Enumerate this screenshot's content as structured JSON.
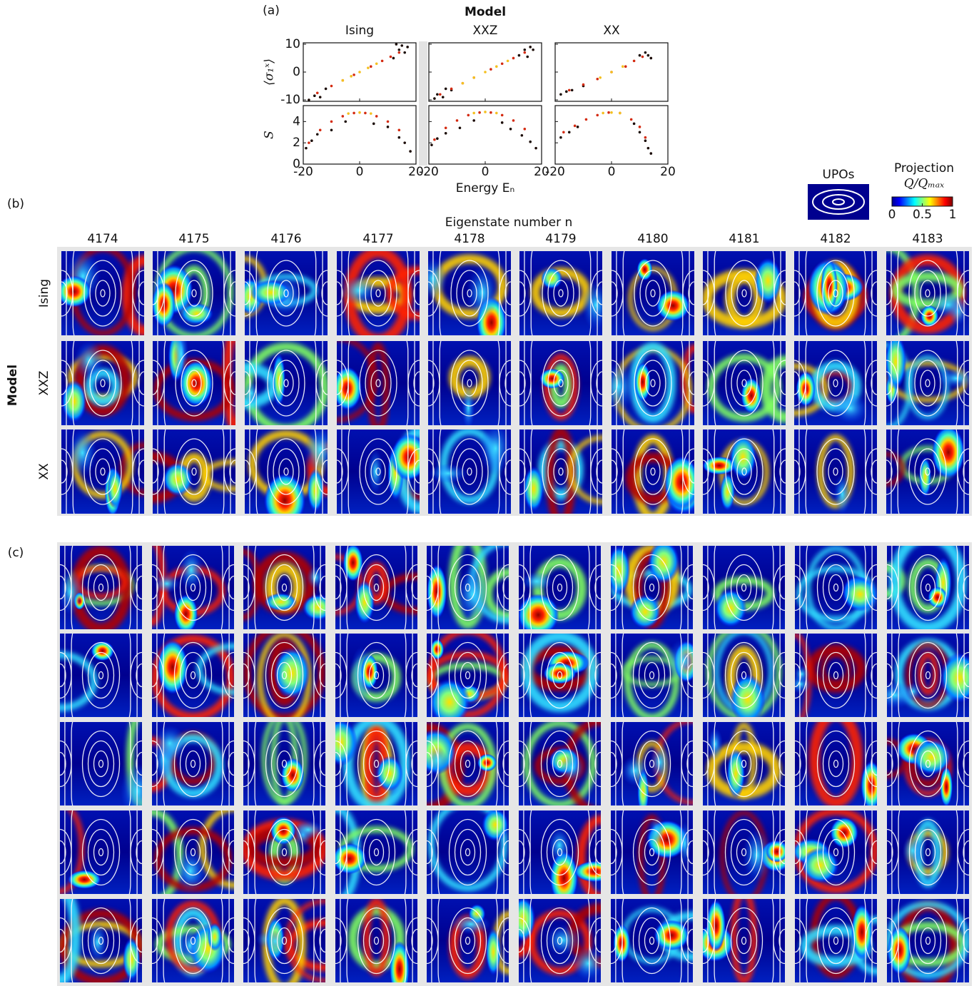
{
  "panel_a": {
    "label": "(a)",
    "title": "Model",
    "columns": [
      "Ising",
      "XXZ",
      "XX"
    ],
    "ylabels": [
      "⟨σ₁ˣ⟩",
      "S"
    ],
    "xlabel": "Energy Eₙ"
  },
  "chart_data": [
    {
      "type": "scatter",
      "xlim": [
        -20,
        20
      ],
      "ylim": [
        -10.5,
        10.5
      ],
      "xticks": [
        -20,
        0,
        20
      ],
      "yticks": [
        -10,
        0,
        10
      ],
      "series": [
        {
          "color": "#1a0a05",
          "x": [
            -18,
            -16,
            -14,
            14,
            15,
            16,
            17,
            -12,
            12,
            13
          ],
          "values": [
            -10,
            -8.5,
            -9,
            8,
            9.5,
            7,
            9,
            -6,
            5,
            10
          ]
        },
        {
          "color": "#d42a10",
          "x": [
            -15,
            -10,
            -6,
            -2,
            4,
            8,
            11,
            14
          ],
          "values": [
            -7.5,
            -5,
            -3,
            -1,
            2,
            4,
            5.5,
            7
          ]
        },
        {
          "color": "#f4c020",
          "x": [
            -6,
            -3,
            0,
            3,
            6
          ],
          "values": [
            -3,
            -1.5,
            0,
            1.5,
            3
          ]
        }
      ]
    },
    {
      "type": "scatter",
      "xlim": [
        -20,
        20
      ],
      "ylim": [
        -10.5,
        10.5
      ],
      "xticks": [
        -20,
        0,
        20
      ],
      "yticks": [
        -10,
        0,
        10
      ],
      "series": [
        {
          "color": "#1a0a05",
          "x": [
            -18,
            -17,
            -15,
            -12,
            12,
            14,
            16,
            17,
            15,
            -14
          ],
          "values": [
            -9.5,
            -8,
            -9,
            -6.5,
            6,
            8,
            9,
            8,
            5.5,
            -6
          ]
        },
        {
          "color": "#d42a10",
          "x": [
            -16,
            -12,
            -8,
            -4,
            2,
            6,
            10,
            14
          ],
          "values": [
            -8,
            -6,
            -4,
            -2,
            1,
            3,
            5,
            7
          ]
        },
        {
          "color": "#f4c020",
          "x": [
            -8,
            -4,
            0,
            4,
            8
          ],
          "values": [
            -4,
            -2,
            0,
            2,
            4
          ]
        }
      ]
    },
    {
      "type": "scatter",
      "xlim": [
        -20,
        20
      ],
      "ylim": [
        -10.5,
        10.5
      ],
      "xticks": [
        -20,
        0,
        20
      ],
      "yticks": [
        -10,
        0,
        10
      ],
      "series": [
        {
          "color": "#1a0a05",
          "x": [
            -18,
            -16,
            -14,
            10,
            12,
            13,
            14,
            -10
          ],
          "values": [
            -8,
            -7,
            -6.5,
            6,
            7,
            6,
            5,
            -5
          ]
        },
        {
          "color": "#d42a10",
          "x": [
            -15,
            -10,
            -5,
            0,
            5,
            8,
            11
          ],
          "values": [
            -6.5,
            -4.5,
            -2.5,
            0,
            2,
            4,
            5.5
          ]
        },
        {
          "color": "#f4c020",
          "x": [
            -4,
            0,
            4
          ],
          "values": [
            -2,
            0,
            2
          ]
        }
      ]
    },
    {
      "type": "scatter",
      "xlim": [
        -20,
        20
      ],
      "ylim": [
        0,
        5.5
      ],
      "xticks": [
        -20,
        0,
        20
      ],
      "yticks": [
        0,
        2,
        4
      ],
      "series": [
        {
          "color": "#1a0a05",
          "x": [
            -19,
            -17,
            -15,
            -10,
            10,
            14,
            16,
            18,
            -5,
            5
          ],
          "values": [
            1.5,
            2.2,
            2.8,
            3.2,
            3.5,
            2.5,
            2,
            1.2,
            4,
            3.8
          ]
        },
        {
          "color": "#d42a10",
          "x": [
            -18,
            -14,
            -10,
            -6,
            -2,
            2,
            6,
            10,
            14
          ],
          "values": [
            2,
            3.2,
            4,
            4.5,
            4.8,
            4.8,
            4.5,
            4,
            3.2
          ]
        },
        {
          "color": "#f4c020",
          "x": [
            -4,
            0,
            4
          ],
          "values": [
            4.75,
            4.85,
            4.75
          ]
        }
      ]
    },
    {
      "type": "scatter",
      "xlim": [
        -20,
        20
      ],
      "ylim": [
        0,
        5.5
      ],
      "xticks": [
        -20,
        0,
        20
      ],
      "yticks": [
        0,
        2,
        4
      ],
      "series": [
        {
          "color": "#1a0a05",
          "x": [
            -19,
            -17,
            -14,
            -9,
            9,
            13,
            16,
            18,
            -4,
            6
          ],
          "values": [
            1.8,
            2.4,
            2.9,
            3.4,
            3.3,
            2.7,
            2.1,
            1.5,
            4.1,
            3.9
          ]
        },
        {
          "color": "#d42a10",
          "x": [
            -18,
            -14,
            -10,
            -6,
            -2,
            2,
            6,
            10,
            14
          ],
          "values": [
            2.3,
            3.4,
            4.1,
            4.6,
            4.85,
            4.85,
            4.6,
            4.1,
            3.3
          ]
        },
        {
          "color": "#f4c020",
          "x": [
            -4,
            0,
            4
          ],
          "values": [
            4.8,
            4.9,
            4.8
          ]
        }
      ]
    },
    {
      "type": "scatter",
      "xlim": [
        -20,
        20
      ],
      "ylim": [
        0,
        5.5
      ],
      "xticks": [
        -20,
        0,
        20
      ],
      "yticks": [
        0,
        2,
        4
      ],
      "series": [
        {
          "color": "#1a0a05",
          "x": [
            -18,
            -15,
            -12,
            8,
            10,
            12,
            13,
            14
          ],
          "values": [
            2.5,
            3,
            3.5,
            3.8,
            3,
            2.2,
            1.5,
            1
          ]
        },
        {
          "color": "#d42a10",
          "x": [
            -17,
            -13,
            -9,
            -5,
            -1,
            3,
            7,
            10,
            12
          ],
          "values": [
            3,
            3.6,
            4.2,
            4.6,
            4.85,
            4.8,
            4.2,
            3.5,
            2.5
          ]
        },
        {
          "color": "#f4c020",
          "x": [
            -3,
            0,
            3
          ],
          "values": [
            4.8,
            4.85,
            4.8
          ]
        }
      ]
    }
  ],
  "legend": {
    "upos_title": "UPOs",
    "colorbar_title": "Projection",
    "colorbar_label": "Q/Qₘₐₓ",
    "colorbar_lim": [
      0,
      1
    ],
    "colorbar_ticks": [
      0,
      0.5,
      1
    ],
    "colormap": [
      "#00008f",
      "#0000ff",
      "#0080ff",
      "#00ffff",
      "#80ff80",
      "#ffff00",
      "#ff8000",
      "#ff0000",
      "#800000"
    ]
  },
  "panel_b": {
    "label": "(b)",
    "xlabel": "Eigenstate number n",
    "columns": [
      4174,
      4175,
      4176,
      4177,
      4178,
      4179,
      4180,
      4181,
      4182,
      4183
    ],
    "model_label": "Model",
    "rows": [
      "Ising",
      "XXZ",
      "XX"
    ]
  },
  "panel_c": {
    "label": "(c)"
  }
}
